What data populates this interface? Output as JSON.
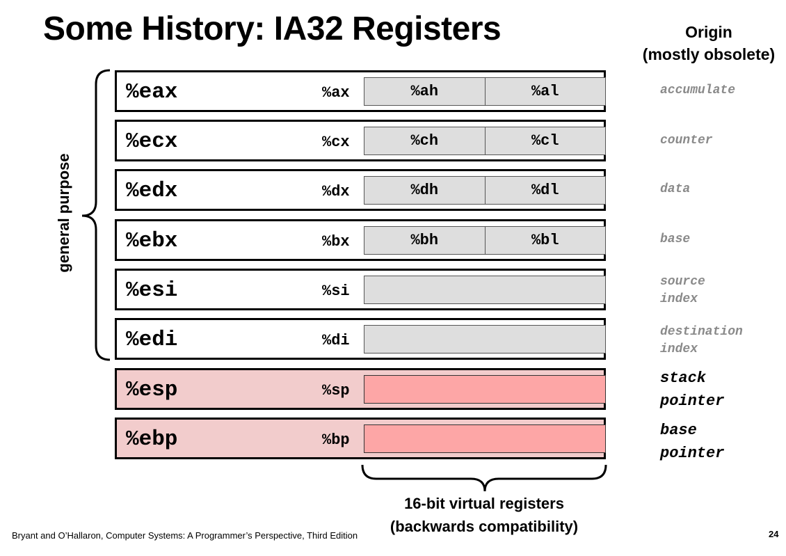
{
  "slide": {
    "title": "Some History: IA32 Registers",
    "origin_header": {
      "line1": "Origin",
      "line2": "(mostly obsolete)"
    },
    "general_purpose_label": "general purpose",
    "registers": [
      {
        "name": "%eax",
        "reg16": "%ax",
        "high": "%ah",
        "low": "%al",
        "origin": "accumulate",
        "highlight": false
      },
      {
        "name": "%ecx",
        "reg16": "%cx",
        "high": "%ch",
        "low": "%cl",
        "origin": "counter",
        "highlight": false
      },
      {
        "name": "%edx",
        "reg16": "%dx",
        "high": "%dh",
        "low": "%dl",
        "origin": "data",
        "highlight": false
      },
      {
        "name": "%ebx",
        "reg16": "%bx",
        "high": "%bh",
        "low": "%bl",
        "origin": "base",
        "highlight": false
      },
      {
        "name": "%esi",
        "reg16": "%si",
        "origin": "source\nindex",
        "highlight": false
      },
      {
        "name": "%edi",
        "reg16": "%di",
        "origin": "destination\nindex",
        "highlight": false
      },
      {
        "name": "%esp",
        "reg16": "%sp",
        "origin": "stack\npointer",
        "highlight": true
      },
      {
        "name": "%ebp",
        "reg16": "%bp",
        "origin": "base\npointer",
        "highlight": true
      }
    ],
    "caption": {
      "line1": "16-bit virtual registers",
      "line2": "(backwards compatibility)"
    },
    "footer": "Bryant and O’Hallaron, Computer Systems: A Programmer’s Perspective, Third Edition",
    "page_number": "24",
    "colors": {
      "subregister_fill": "#dedede",
      "highlight_row_fill": "#f2cccc",
      "highlight_subregister_fill": "#fda6a6",
      "origin_text": "#8a8a8a"
    }
  }
}
